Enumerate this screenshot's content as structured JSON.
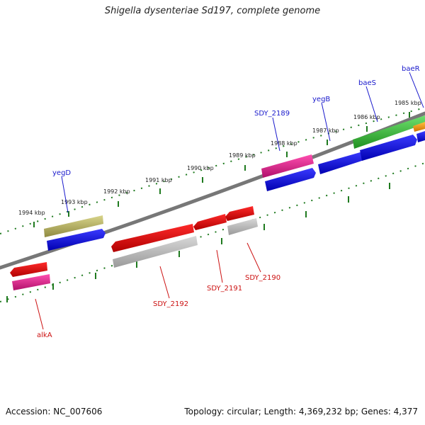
{
  "title": "Shigella dysenteriae Sd197, complete genome",
  "footer": {
    "accession": "Accession: NC_007606",
    "topology": "Topology: circular; Length: 4,369,232 bp; Genes: 4,377"
  },
  "colors": {
    "backbone": "#777777",
    "tick": "#1f7a1f",
    "forward_label": "#1a1acc",
    "reverse_label": "#cc1111"
  },
  "scale_labels": [
    "1994 kbp",
    "1993 kbp",
    "1992 kbp",
    "1991 kbp",
    "1990 kbp",
    "1989 kbp",
    "1988 kbp",
    "1987 kbp",
    "1986 kbp",
    "1985 kbp"
  ],
  "gene_labels_forward": [
    "yegD",
    "SDY_2189",
    "yegB",
    "baeS",
    "baeR"
  ],
  "gene_labels_reverse": [
    "alkA",
    "SDY_2192",
    "SDY_2191",
    "SDY_2190"
  ]
}
